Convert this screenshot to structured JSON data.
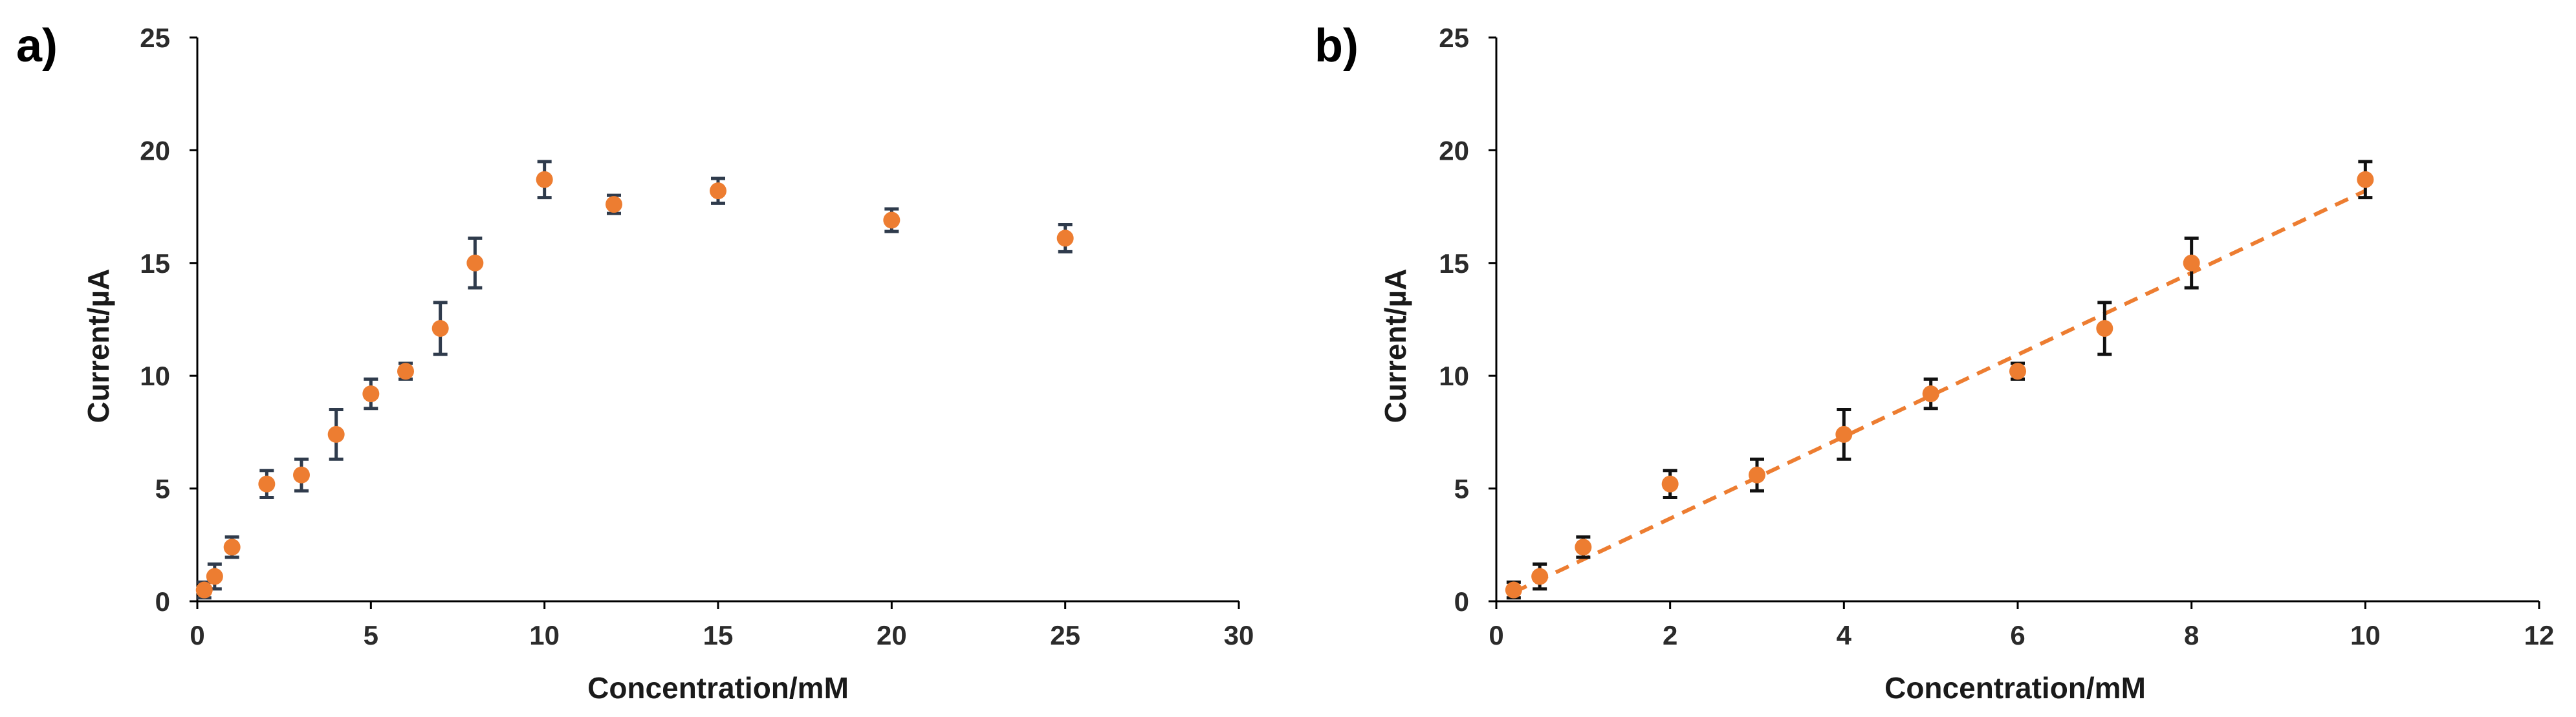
{
  "colors": {
    "marker": "#ED7D31",
    "error_bar_a": "#2F3B4C",
    "error_bar_b": "#111111",
    "axis": "#000000",
    "fit_line": "#ED7D31"
  },
  "chart_data": [
    {
      "panel_label": "a)",
      "type": "scatter",
      "xlabel": "Concentration/mM",
      "ylabel": "Current/µA",
      "xlim": [
        0,
        30
      ],
      "ylim": [
        0,
        25
      ],
      "xticks": [
        "0",
        "5",
        "10",
        "15",
        "20",
        "25",
        "30"
      ],
      "yticks": [
        "0",
        "5",
        "10",
        "15",
        "20",
        "25"
      ],
      "grid": false,
      "error_bar_color": "error_bar_a",
      "series": [
        {
          "x": [
            0.2,
            0.5,
            1,
            2,
            3,
            4,
            5,
            6,
            7,
            8,
            10,
            12,
            15,
            20,
            25
          ],
          "y": [
            0.5,
            1.1,
            2.4,
            5.2,
            5.6,
            7.4,
            9.2,
            10.2,
            12.1,
            15.0,
            18.7,
            17.6,
            18.2,
            16.9,
            16.1
          ],
          "yerr": [
            0.35,
            0.55,
            0.45,
            0.6,
            0.7,
            1.1,
            0.65,
            0.35,
            1.15,
            1.1,
            0.8,
            0.4,
            0.55,
            0.5,
            0.6
          ]
        }
      ]
    },
    {
      "panel_label": "b)",
      "type": "scatter",
      "xlabel": "Concentration/mM",
      "ylabel": "Current/µA",
      "xlim": [
        0,
        12
      ],
      "ylim": [
        0,
        25
      ],
      "xticks": [
        "0",
        "2",
        "4",
        "6",
        "8",
        "10",
        "12"
      ],
      "yticks": [
        "0",
        "5",
        "10",
        "15",
        "20",
        "25"
      ],
      "grid": false,
      "error_bar_color": "error_bar_b",
      "series": [
        {
          "x": [
            0.2,
            0.5,
            1,
            2,
            3,
            4,
            5,
            6,
            7,
            8,
            10
          ],
          "y": [
            0.5,
            1.1,
            2.4,
            5.2,
            5.6,
            7.4,
            9.2,
            10.2,
            12.1,
            15.0,
            18.7
          ],
          "yerr": [
            0.35,
            0.55,
            0.45,
            0.6,
            0.7,
            1.1,
            0.65,
            0.35,
            1.15,
            1.1,
            0.8
          ]
        }
      ],
      "trendline": {
        "style": "dashed",
        "x": [
          0.2,
          10
        ],
        "y": [
          0.4,
          18.2
        ]
      }
    }
  ]
}
